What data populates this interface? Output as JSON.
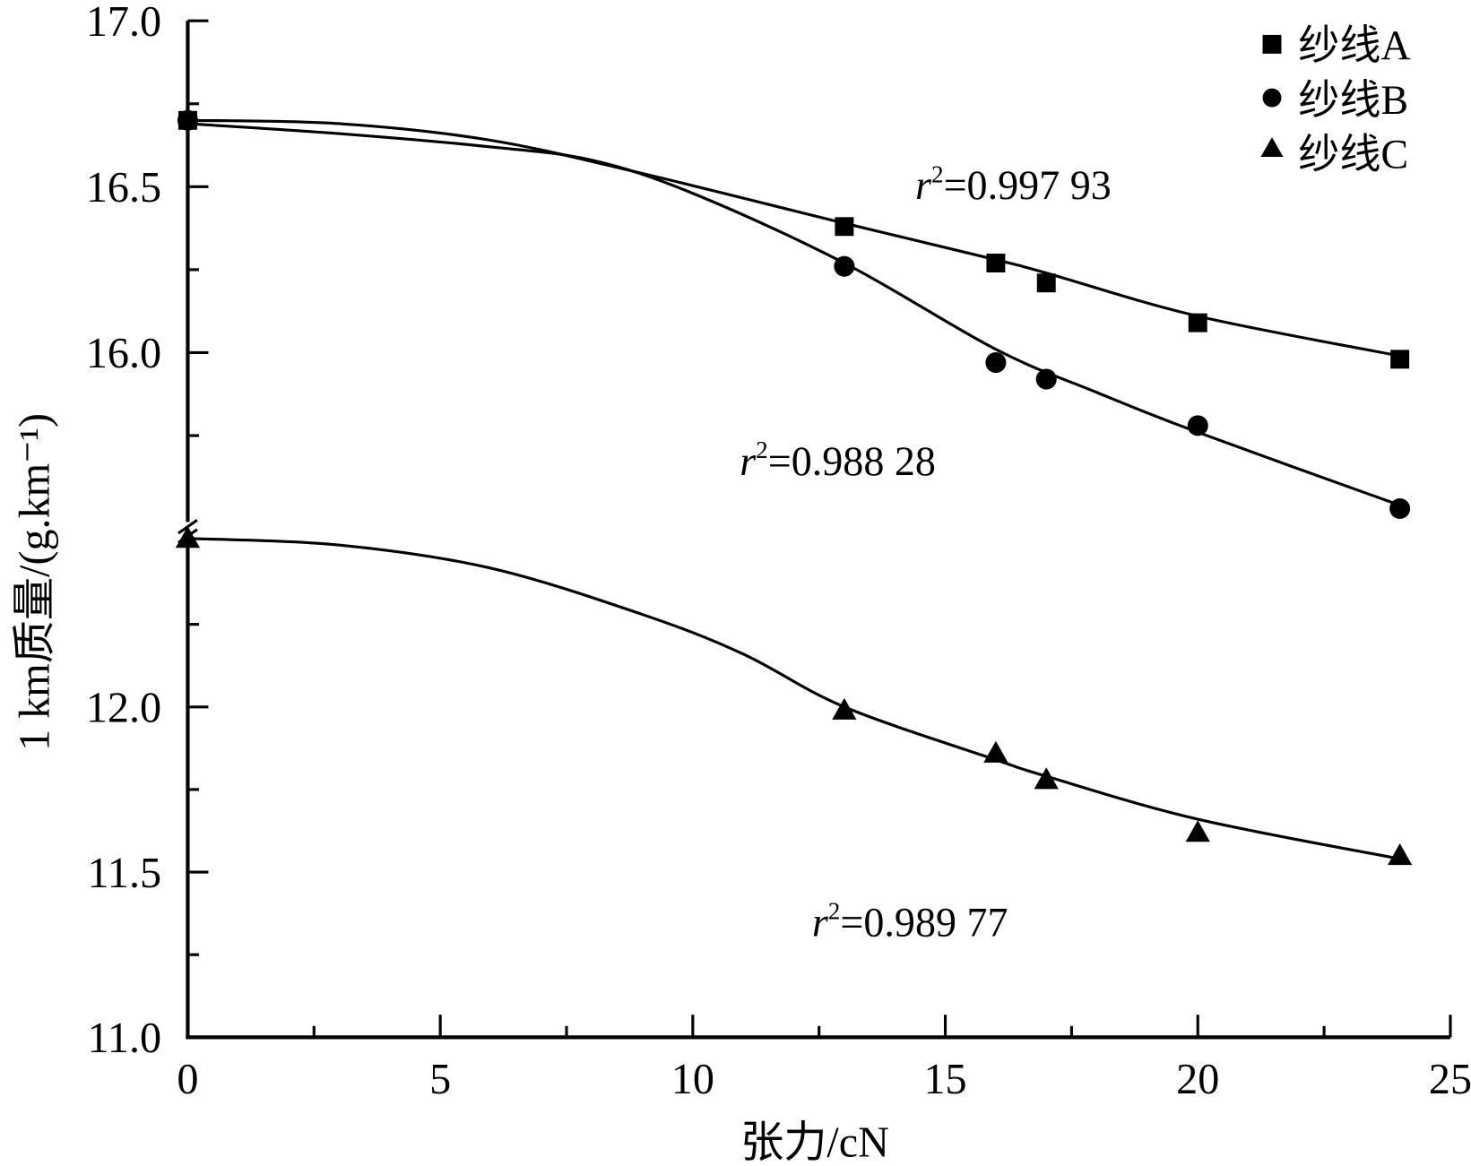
{
  "chart_data": {
    "type": "line",
    "title": "",
    "xlabel": "张力/cN",
    "ylabel": "1 km质量/(g.km⁻¹)",
    "xlim": [
      0,
      25
    ],
    "x_ticks": [
      "0",
      "5",
      "10",
      "15",
      "20",
      "25"
    ],
    "y_axis_broken": true,
    "y_segments": [
      [
        15.45,
        17.0
      ],
      [
        11.0,
        12.52
      ]
    ],
    "y_ticks": [
      "17.0",
      "16.5",
      "16.0",
      "12.0",
      "11.5",
      "11.0"
    ],
    "grid": false,
    "legend_position": "top-right",
    "series": [
      {
        "name": "纱线A",
        "marker": "square",
        "x": [
          0,
          13,
          16,
          17,
          20,
          24
        ],
        "y": [
          16.7,
          16.38,
          16.27,
          16.21,
          16.09,
          15.98
        ],
        "fit_x": [
          0,
          3,
          6,
          9,
          13,
          16,
          17,
          20,
          24
        ],
        "fit_y": [
          16.7,
          16.69,
          16.64,
          16.54,
          16.39,
          16.28,
          16.24,
          16.11,
          15.99
        ]
      },
      {
        "name": "纱线B",
        "marker": "circle",
        "x": [
          0,
          13,
          16,
          17,
          20,
          24
        ],
        "y": [
          16.7,
          16.26,
          15.97,
          15.92,
          15.78,
          15.53
        ],
        "fit_x": [
          0,
          3,
          6,
          8,
          10,
          13,
          16,
          18,
          20,
          24
        ],
        "fit_y": [
          16.69,
          16.66,
          16.62,
          16.58,
          16.48,
          16.27,
          16.01,
          15.88,
          15.76,
          15.54
        ]
      },
      {
        "name": "纱线C",
        "marker": "triangle",
        "x": [
          0,
          13,
          16,
          17,
          20,
          24
        ],
        "y": [
          12.51,
          11.99,
          11.86,
          11.78,
          11.62,
          11.55
        ],
        "fit_x": [
          0,
          3,
          6,
          9,
          11,
          13,
          16,
          17,
          20,
          24
        ],
        "fit_y": [
          12.51,
          12.49,
          12.42,
          12.28,
          12.16,
          12.0,
          11.84,
          11.79,
          11.66,
          11.54
        ]
      }
    ],
    "annotations": [
      {
        "label": "r",
        "sup": "2",
        "text": "=0.997 93",
        "series": "纱线A"
      },
      {
        "label": "r",
        "sup": "2",
        "text": "=0.988 28",
        "series": "纱线B"
      },
      {
        "label": "r",
        "sup": "2",
        "text": "=0.989 77",
        "series": "纱线C"
      }
    ]
  }
}
